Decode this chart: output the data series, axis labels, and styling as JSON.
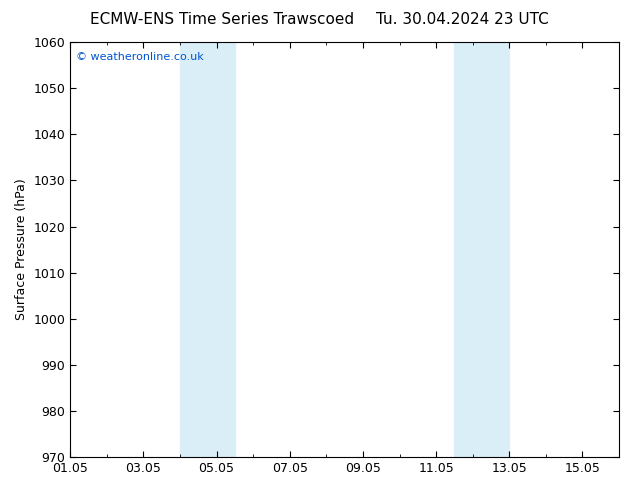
{
  "title_left": "ECMW-ENS Time Series Trawscoed",
  "title_right": "Tu. 30.04.2024 23 UTC",
  "ylabel": "Surface Pressure (hPa)",
  "ylim": [
    970,
    1060
  ],
  "ytick_step": 10,
  "xlim_start": 0,
  "xlim_end": 15,
  "xtick_labels": [
    "01.05",
    "03.05",
    "05.05",
    "07.05",
    "09.05",
    "11.05",
    "13.05",
    "15.05"
  ],
  "xtick_positions": [
    0,
    2,
    4,
    6,
    8,
    10,
    12,
    14
  ],
  "shade_regions": [
    {
      "xmin": 3.0,
      "xmax": 4.5,
      "color": "#daeef8"
    },
    {
      "xmin": 10.5,
      "xmax": 12.0,
      "color": "#daeef8"
    }
  ],
  "watermark_text": "© weatheronline.co.uk",
  "watermark_color": "#0055cc",
  "background_color": "#ffffff",
  "plot_bg_color": "#ffffff",
  "title_fontsize": 11,
  "tick_fontsize": 9,
  "ylabel_fontsize": 9
}
